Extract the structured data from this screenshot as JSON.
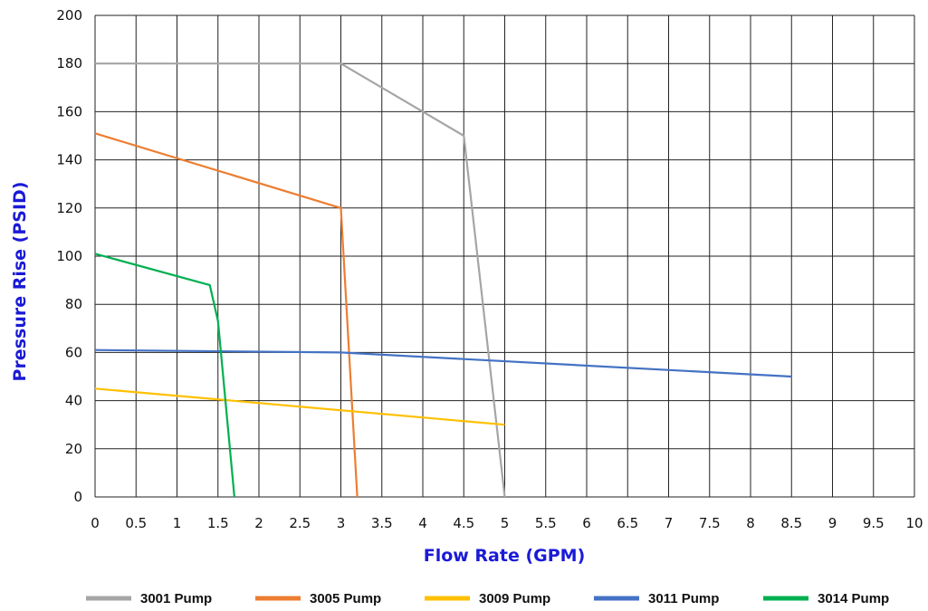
{
  "chart_data": {
    "type": "line",
    "xlabel": "Flow Rate (GPM)",
    "ylabel": "Pressure Rise (PSID)",
    "xlim": [
      0,
      10
    ],
    "ylim": [
      0,
      200
    ],
    "x_ticks": [
      "0",
      "0.5",
      "1",
      "1.5",
      "2",
      "2.5",
      "3",
      "3.5",
      "4",
      "4.5",
      "5",
      "5.5",
      "6",
      "6.5",
      "7",
      "7.5",
      "8",
      "8.5",
      "9",
      "9.5",
      "10"
    ],
    "y_ticks": [
      "0",
      "20",
      "40",
      "60",
      "80",
      "100",
      "120",
      "140",
      "160",
      "180",
      "200"
    ],
    "grid": true,
    "legend_position": "bottom",
    "series": [
      {
        "name": "3001 Pump",
        "color": "#a5a5a5",
        "points": [
          [
            0,
            180
          ],
          [
            3,
            180
          ],
          [
            4.5,
            150
          ],
          [
            5,
            0
          ]
        ]
      },
      {
        "name": "3005 Pump",
        "color": "#ed7d31",
        "points": [
          [
            0,
            151
          ],
          [
            3,
            120
          ],
          [
            3.2,
            0
          ]
        ]
      },
      {
        "name": "3009 Pump",
        "color": "#ffc000",
        "points": [
          [
            0,
            45
          ],
          [
            5,
            30
          ]
        ]
      },
      {
        "name": "3011 Pump",
        "color": "#4472c4",
        "points": [
          [
            0,
            61
          ],
          [
            3,
            60
          ],
          [
            8.5,
            50
          ]
        ]
      },
      {
        "name": "3014 Pump",
        "color": "#00b050",
        "points": [
          [
            0,
            101
          ],
          [
            1.4,
            88
          ],
          [
            1.5,
            73
          ],
          [
            1.7,
            0
          ]
        ]
      }
    ]
  }
}
